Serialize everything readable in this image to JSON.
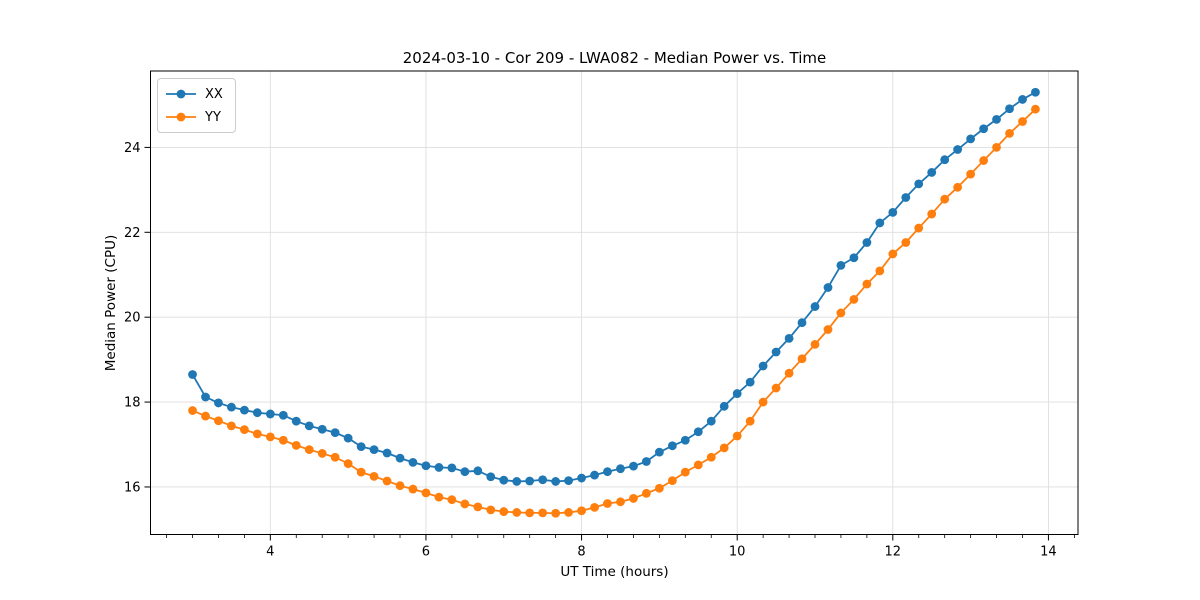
{
  "chart_data": {
    "type": "line",
    "title": "2024-03-10 - Cor 209 - LWA082 - Median Power vs. Time",
    "xlabel": "UT Time (hours)",
    "ylabel": "Median Power (CPU)",
    "xlim": [
      2.46,
      14.38
    ],
    "ylim": [
      14.88,
      25.8
    ],
    "x_major_ticks": [
      4,
      6,
      8,
      10,
      12,
      14
    ],
    "x_minor_step": 0.3333,
    "y_major_ticks": [
      16,
      18,
      20,
      22,
      24
    ],
    "grid": true,
    "legend_position": "upper-left",
    "x": [
      3.0,
      3.167,
      3.333,
      3.5,
      3.667,
      3.833,
      4.0,
      4.167,
      4.333,
      4.5,
      4.667,
      4.833,
      5.0,
      5.167,
      5.333,
      5.5,
      5.667,
      5.833,
      6.0,
      6.167,
      6.333,
      6.5,
      6.667,
      6.833,
      7.0,
      7.167,
      7.333,
      7.5,
      7.667,
      7.833,
      8.0,
      8.167,
      8.333,
      8.5,
      8.667,
      8.833,
      9.0,
      9.167,
      9.333,
      9.5,
      9.667,
      9.833,
      10.0,
      10.167,
      10.333,
      10.5,
      10.667,
      10.833,
      11.0,
      11.167,
      11.333,
      11.5,
      11.667,
      11.833,
      12.0,
      12.167,
      12.333,
      12.5,
      12.667,
      12.833,
      13.0,
      13.167,
      13.333,
      13.5,
      13.667,
      13.833
    ],
    "series": [
      {
        "name": "XX",
        "color": "#1f77b4",
        "values": [
          18.65,
          18.12,
          17.98,
          17.88,
          17.81,
          17.75,
          17.72,
          17.69,
          17.55,
          17.44,
          17.36,
          17.28,
          17.15,
          16.95,
          16.88,
          16.8,
          16.68,
          16.58,
          16.5,
          16.46,
          16.45,
          16.36,
          16.38,
          16.24,
          16.16,
          16.13,
          16.14,
          16.17,
          16.13,
          16.15,
          16.21,
          16.28,
          16.36,
          16.43,
          16.49,
          16.6,
          16.82,
          16.97,
          17.1,
          17.3,
          17.55,
          17.9,
          18.2,
          18.47,
          18.85,
          19.18,
          19.5,
          19.87,
          20.25,
          20.7,
          21.22,
          21.4,
          21.76,
          22.22,
          22.47,
          22.82,
          23.14,
          23.41,
          23.71,
          23.95,
          24.2,
          24.44,
          24.66,
          24.91,
          25.13,
          25.3
        ]
      },
      {
        "name": "YY",
        "color": "#ff7f0e",
        "values": [
          17.8,
          17.67,
          17.56,
          17.44,
          17.35,
          17.25,
          17.18,
          17.1,
          16.98,
          16.88,
          16.79,
          16.7,
          16.55,
          16.35,
          16.25,
          16.14,
          16.03,
          15.95,
          15.86,
          15.76,
          15.7,
          15.6,
          15.53,
          15.46,
          15.42,
          15.4,
          15.39,
          15.39,
          15.38,
          15.4,
          15.44,
          15.52,
          15.61,
          15.65,
          15.73,
          15.85,
          15.97,
          16.15,
          16.35,
          16.52,
          16.7,
          16.92,
          17.2,
          17.55,
          18.0,
          18.33,
          18.68,
          19.02,
          19.36,
          19.71,
          20.1,
          20.42,
          20.78,
          21.09,
          21.49,
          21.76,
          22.1,
          22.43,
          22.78,
          23.06,
          23.37,
          23.69,
          24.0,
          24.33,
          24.61,
          24.9
        ]
      }
    ],
    "colors": {
      "grid": "#dedede",
      "spine": "#000000",
      "background": "#ffffff"
    }
  }
}
